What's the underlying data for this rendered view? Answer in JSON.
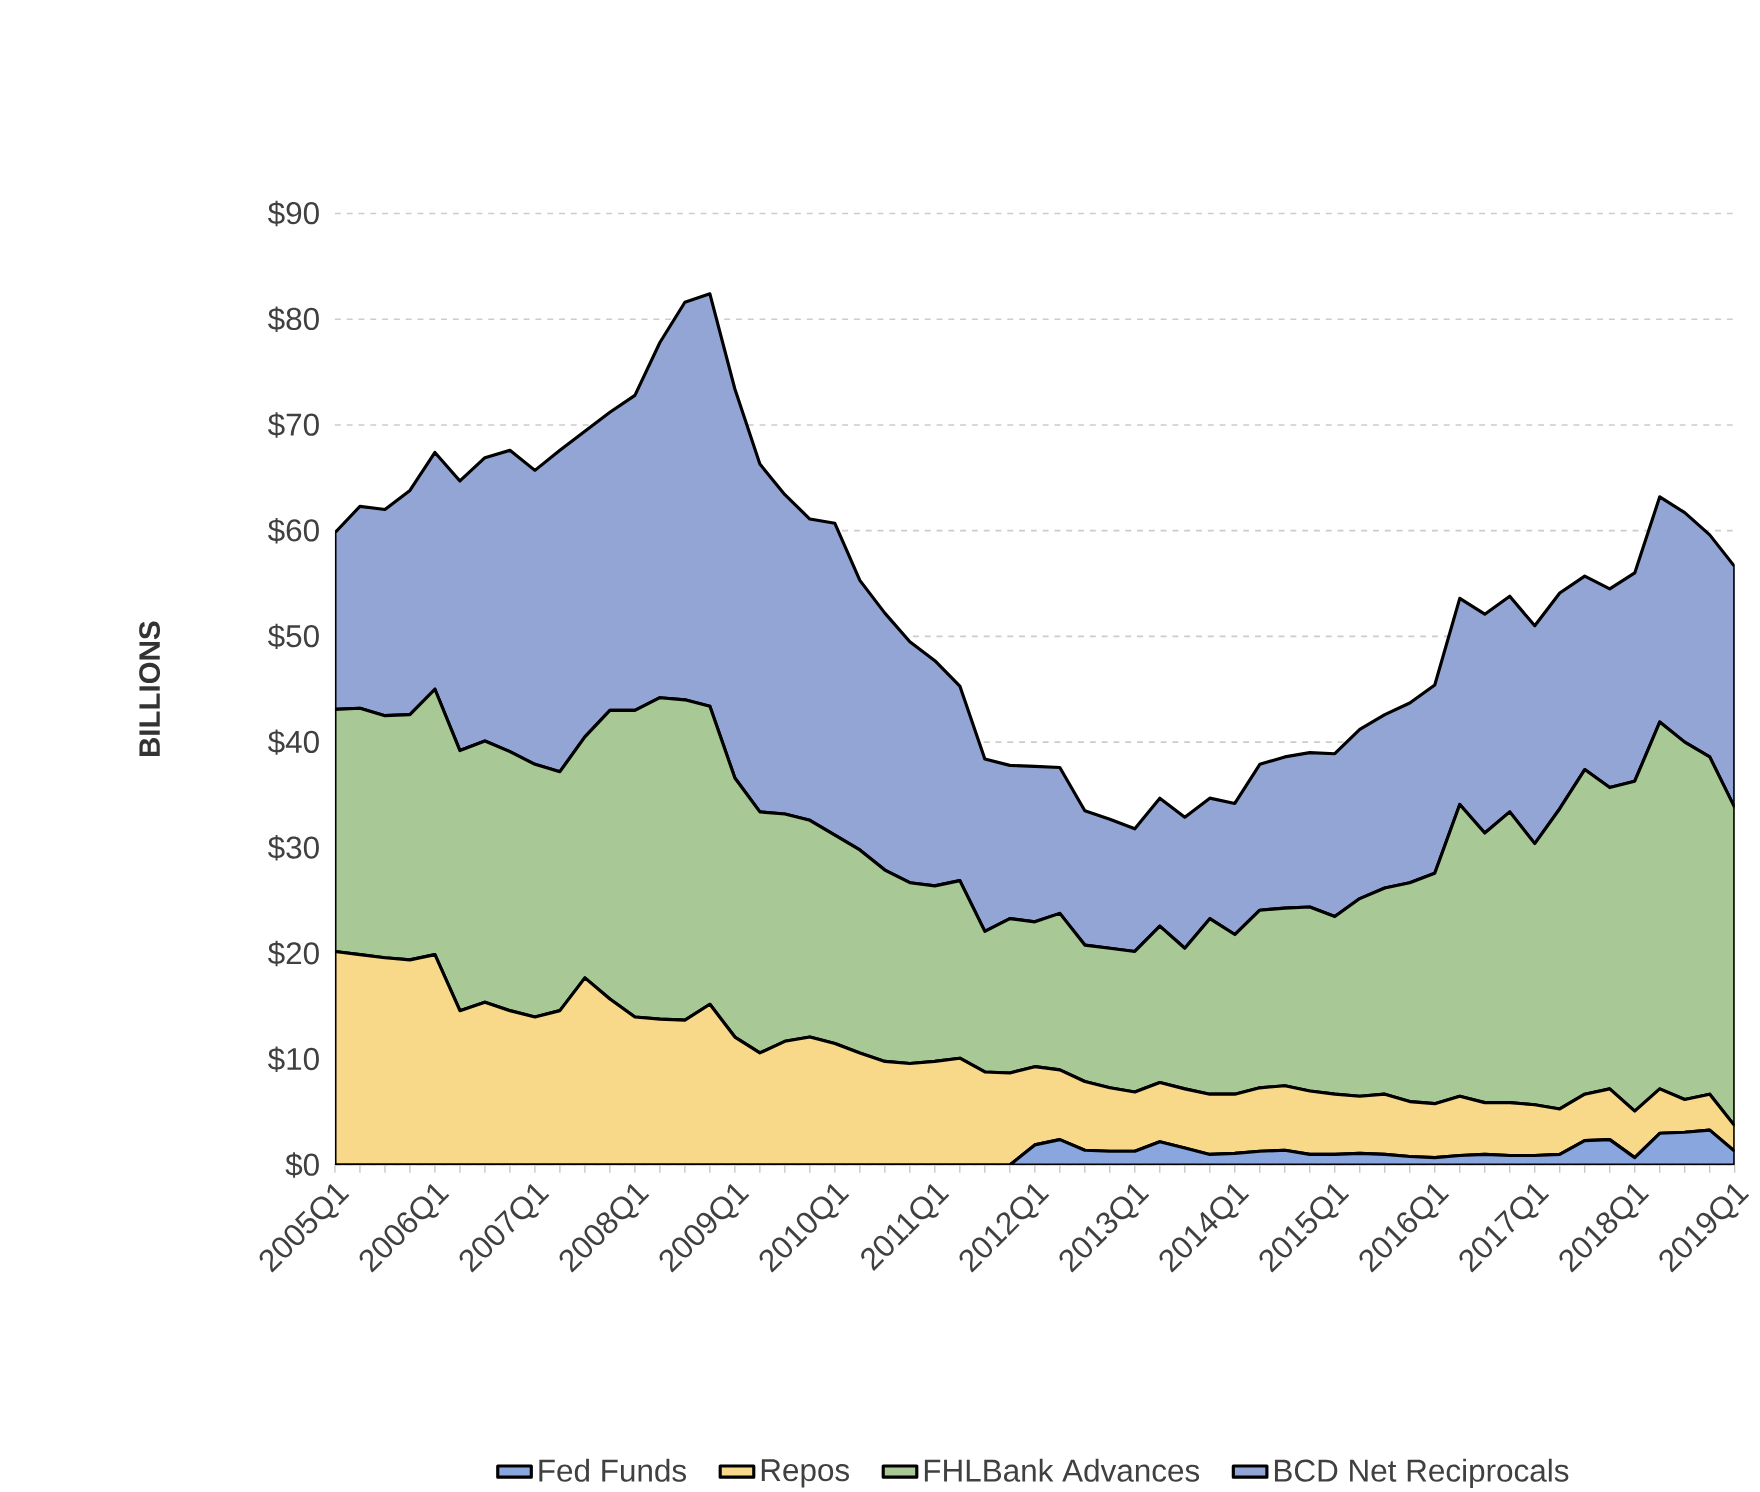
{
  "chart_data": {
    "type": "area",
    "ylabel": "BILLIONS",
    "stacked": true,
    "grid": "y",
    "legend": "bottom",
    "categories": [
      "2005Q1",
      null,
      null,
      null,
      "2006Q1",
      null,
      null,
      null,
      "2007Q1",
      null,
      null,
      null,
      "2008Q1",
      null,
      null,
      null,
      "2009Q1",
      null,
      null,
      null,
      "2010Q1",
      null,
      null,
      null,
      "2011Q1",
      null,
      null,
      null,
      "2012Q1",
      null,
      null,
      null,
      "2013Q1",
      null,
      null,
      null,
      "2014Q1",
      null,
      null,
      null,
      "2015Q1",
      null,
      null,
      null,
      "2016Q1",
      null,
      null,
      null,
      "2017Q1",
      null,
      null,
      null,
      "2018Q1",
      null,
      null,
      null,
      "2019Q1"
    ],
    "ylim": [
      0,
      90
    ],
    "yticks": [
      {
        "value": 0,
        "label": "$0"
      },
      {
        "value": 10,
        "label": "$10"
      },
      {
        "value": 20,
        "label": "$20"
      },
      {
        "value": 30,
        "label": "$30"
      },
      {
        "value": 40,
        "label": "$40"
      },
      {
        "value": 50,
        "label": "$50"
      },
      {
        "value": 60,
        "label": "$60"
      },
      {
        "value": 70,
        "label": "$70"
      },
      {
        "value": 80,
        "label": "$80"
      },
      {
        "value": 90,
        "label": "$90"
      }
    ],
    "series": [
      {
        "name": "Fed Funds",
        "color": "#8aa6de",
        "values": [
          0,
          0,
          0,
          0,
          0,
          0,
          0,
          0,
          0,
          0,
          0,
          0,
          0,
          0,
          0,
          0,
          0,
          0,
          0,
          0,
          0,
          0,
          0,
          0,
          0,
          0,
          0,
          0,
          1.9,
          2.4,
          1.4,
          1.3,
          1.3,
          2.2,
          1.6,
          1.0,
          1.1,
          1.3,
          1.4,
          1.0,
          1.0,
          1.1,
          1.0,
          0.8,
          0.7,
          0.9,
          1.0,
          0.9,
          0.9,
          1.0,
          2.3,
          2.4,
          0.7,
          3.0,
          3.1,
          3.3,
          1.3
        ]
      },
      {
        "name": "Repos",
        "color": "#f8d98a",
        "values": [
          20.2,
          19.9,
          19.6,
          19.4,
          19.9,
          14.6,
          15.4,
          14.6,
          14.0,
          14.6,
          17.7,
          15.7,
          14.0,
          13.8,
          13.7,
          15.2,
          12.1,
          10.6,
          11.7,
          12.1,
          11.5,
          10.6,
          9.8,
          9.6,
          9.8,
          10.1,
          8.8,
          8.7,
          7.4,
          6.6,
          6.5,
          6.0,
          5.6,
          5.6,
          5.6,
          5.7,
          5.6,
          6.0,
          6.1,
          6.0,
          5.7,
          5.4,
          5.7,
          5.2,
          5.1,
          5.6,
          4.9,
          5.0,
          4.8,
          4.3,
          4.4,
          4.8,
          4.4,
          4.2,
          3.1,
          3.4,
          2.4
        ]
      },
      {
        "name": "FHLBank Advances",
        "color": "#a8c895",
        "values": [
          22.9,
          23.3,
          22.9,
          23.2,
          25.1,
          24.6,
          24.7,
          24.5,
          23.9,
          22.6,
          22.8,
          27.3,
          29.0,
          30.4,
          30.3,
          28.2,
          24.5,
          22.8,
          21.5,
          20.5,
          19.7,
          19.2,
          18.1,
          17.1,
          16.6,
          16.8,
          13.3,
          14.6,
          13.7,
          14.8,
          12.9,
          13.2,
          13.3,
          14.8,
          13.3,
          16.6,
          15.1,
          16.8,
          16.8,
          17.4,
          16.8,
          18.7,
          19.5,
          20.7,
          21.8,
          27.6,
          25.5,
          27.5,
          24.7,
          28.4,
          30.7,
          28.5,
          31.2,
          34.7,
          33.8,
          31.9,
          30.1
        ]
      },
      {
        "name": "BCD Net Reciprocals",
        "color": "#93a5d4",
        "values": [
          16.7,
          19.1,
          19.5,
          21.2,
          22.4,
          25.5,
          26.8,
          28.5,
          27.8,
          30.4,
          28.9,
          28.2,
          29.8,
          33.6,
          37.6,
          39.0,
          36.8,
          32.9,
          30.2,
          28.5,
          29.5,
          25.5,
          24.3,
          22.8,
          21.3,
          18.4,
          16.3,
          14.5,
          14.7,
          13.8,
          12.7,
          12.2,
          11.6,
          12.1,
          12.4,
          11.4,
          12.4,
          13.8,
          14.3,
          14.6,
          15.4,
          16.0,
          16.4,
          17.0,
          17.8,
          19.5,
          20.7,
          20.4,
          20.6,
          20.4,
          18.3,
          18.8,
          19.7,
          21.3,
          21.7,
          21.0,
          22.8
        ]
      }
    ]
  }
}
